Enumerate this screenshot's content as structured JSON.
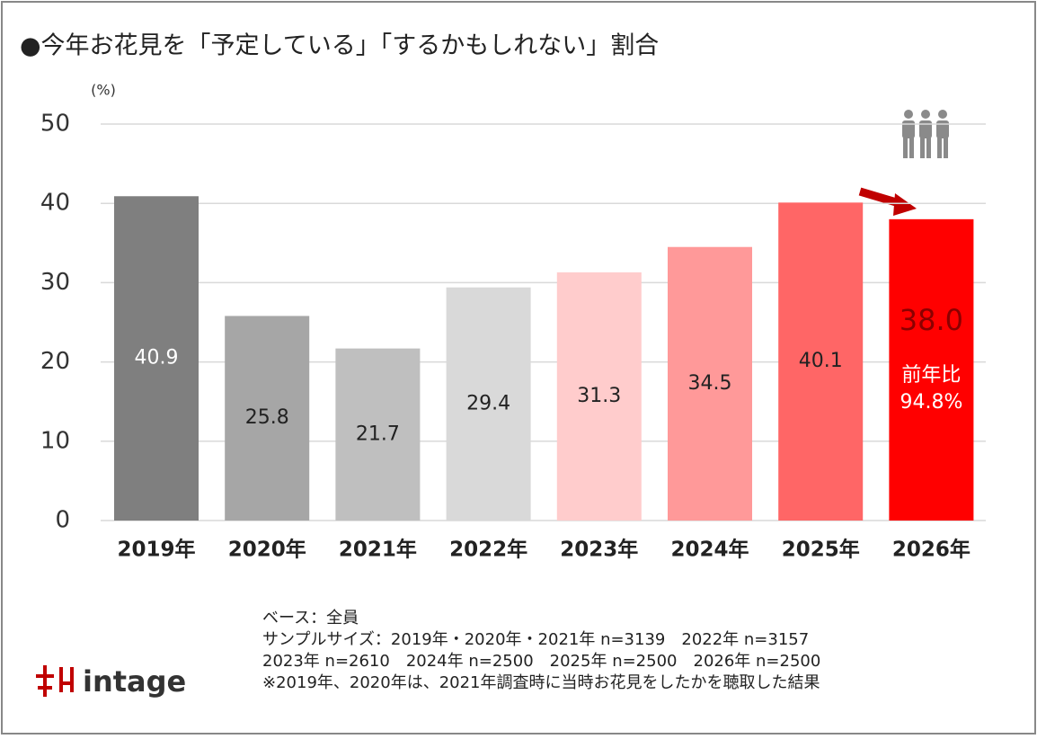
{
  "chart_data": {
    "type": "bar",
    "title": "●今年お花見を「予定している」「するかもしれない」割合",
    "y_unit": "(%)",
    "categories": [
      "2019年",
      "2020年",
      "2021年",
      "2022年",
      "2023年",
      "2024年",
      "2025年",
      "2026年"
    ],
    "values": [
      40.9,
      25.8,
      21.7,
      29.4,
      31.3,
      34.5,
      40.1,
      38.0
    ],
    "value_labels": [
      "40.9",
      "25.8",
      "21.7",
      "29.4",
      "31.3",
      "34.5",
      "40.1",
      "38.0"
    ],
    "colors": [
      "#7f7f7f",
      "#a6a6a6",
      "#bfbfbf",
      "#d9d9d9",
      "#ffcccc",
      "#ff9999",
      "#ff6666",
      "#ff0000"
    ],
    "value_label_colors": [
      "#ffffff",
      "#222222",
      "#222222",
      "#222222",
      "#222222",
      "#222222",
      "#222222",
      "#8b0000"
    ],
    "annotations": [
      "前年比",
      "94.8%"
    ],
    "ylim": [
      0,
      50
    ],
    "yticks": [
      0,
      10,
      20,
      30,
      40,
      50
    ],
    "grid": true,
    "notes": [
      "ベース：全員",
      "サンプルサイズ：2019年・2020年・2021年 n=3139　2022年 n=3157",
      "2023年 n=2610　2024年 n=2500　2025年 n=2500　2026年 n=2500",
      "※2019年、2020年は、2021年調査時に当時お花見をしたかを聴取した結果"
    ],
    "logo": "intage"
  }
}
